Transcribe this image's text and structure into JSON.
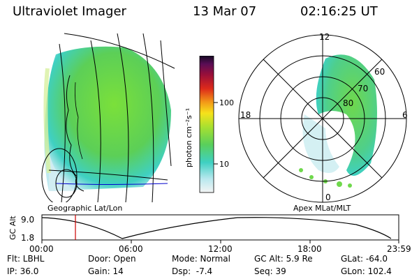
{
  "header": {
    "title": "Ultraviolet Imager",
    "date": "13 Mar 07",
    "time": "02:16:25 UT"
  },
  "geo_panel": {
    "label": "Geographic Lat/Lon"
  },
  "colorbar": {
    "unit_label": "photon cm⁻²s⁻¹",
    "ticks": [
      "100",
      "10"
    ]
  },
  "polar_panel": {
    "label": "Apex MLat/MLT",
    "mlt_labels": {
      "top": "12",
      "left": "18",
      "right": "6",
      "bottom": "0"
    },
    "lat_labels": [
      "60",
      "70",
      "80"
    ]
  },
  "altitude_plot": {
    "ylabel": "GC Alt",
    "yticks": [
      "9.0",
      "1.8"
    ],
    "xticks": [
      "00:00",
      "06:00",
      "12:00",
      "18:00",
      "23:59"
    ],
    "marker_color": "#cc0000"
  },
  "footer": {
    "rows": [
      [
        "Flt: LBHL",
        "Door: Open",
        "Mode: Normal",
        "GC Alt: 5.9 Re",
        "GLat: -64.0"
      ],
      [
        "IP: 36.0",
        "Gain: 14",
        "Dsp:  -7.4",
        "Seq: 39",
        "GLon: 102.4"
      ]
    ]
  }
}
